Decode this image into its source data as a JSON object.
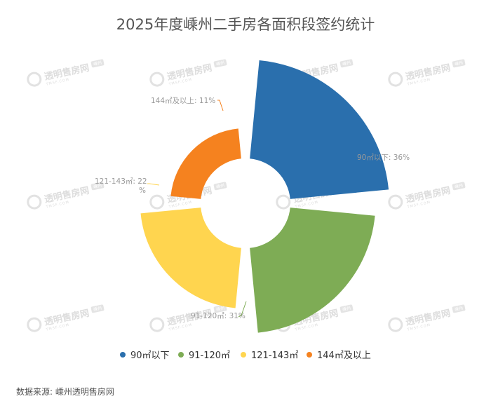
{
  "title": "2025年度嵊州二手房各面积段签约统计",
  "source": "数据来源: 嵊州透明售房网",
  "watermark": {
    "text": "透明售房网",
    "sub": "TMSF.COM",
    "badge": "嵊州"
  },
  "chart_data": {
    "type": "pie",
    "subtype": "nightingale-rose",
    "title": "2025年度嵊州二手房各面积段签约统计",
    "categories": [
      "90㎡以下",
      "91-120㎡",
      "121-143㎡",
      "144㎡及以上"
    ],
    "values": [
      36,
      31,
      22,
      11
    ],
    "unit": "%",
    "data_labels": [
      "90㎡以下: 36%",
      "91-120㎡: 31%",
      "121-143㎡: 22\n%",
      "144㎡及以上: 11%"
    ],
    "colors": [
      "#2a6fad",
      "#7eac55",
      "#ffd54f",
      "#f5821f"
    ],
    "legend_position": "bottom"
  }
}
